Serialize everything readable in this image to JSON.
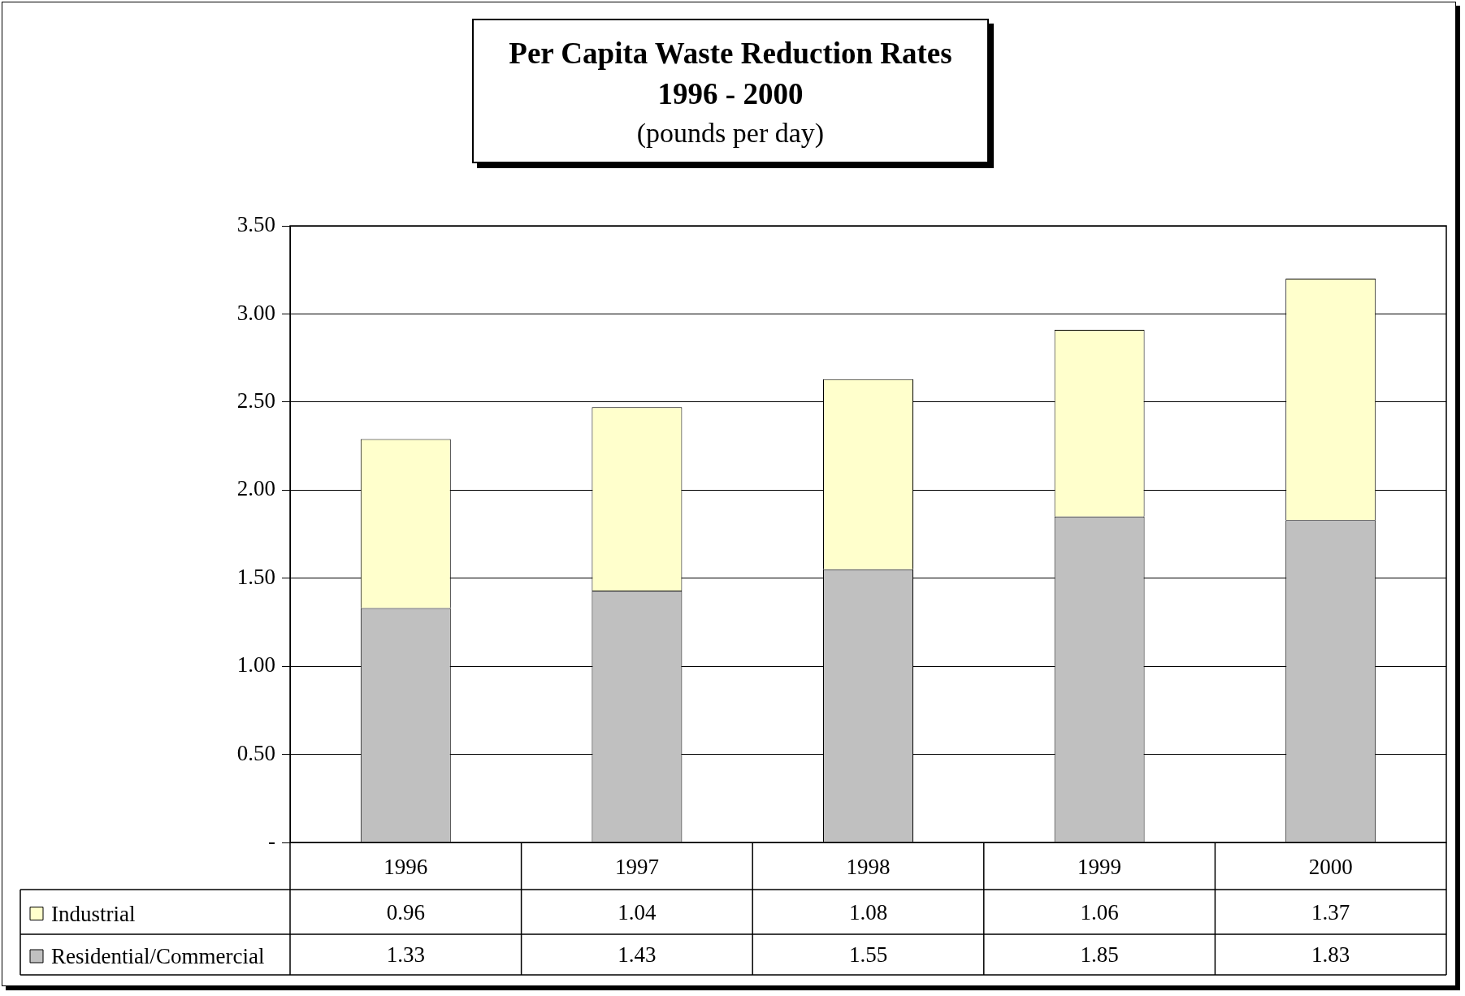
{
  "chart_data": {
    "type": "bar",
    "title": "Per Capita Waste Reduction Rates\n1996 - 2000",
    "subtitle": "(pounds per day)",
    "categories": [
      "1996",
      "1997",
      "1998",
      "1999",
      "2000"
    ],
    "series": [
      {
        "name": "Residential/Commercial",
        "color": "#c0c0c0",
        "values": [
          1.33,
          1.43,
          1.55,
          1.85,
          1.83
        ]
      },
      {
        "name": "Industrial",
        "color": "#ffffcc",
        "values": [
          0.96,
          1.04,
          1.08,
          1.06,
          1.37
        ]
      }
    ],
    "stacked": true,
    "data_labels": true,
    "legend": "bottom left",
    "grid": "y",
    "ylim": [
      0,
      3.5
    ],
    "yticks": [
      {
        "value": 0,
        "label": "-"
      },
      {
        "value": 0.5,
        "label": "0.50"
      },
      {
        "value": 1,
        "label": "1.00"
      },
      {
        "value": 1.5,
        "label": "1.50"
      },
      {
        "value": 2,
        "label": "2.00"
      },
      {
        "value": 2.5,
        "label": "2.50"
      },
      {
        "value": 3,
        "label": "3.00"
      },
      {
        "value": 3.5,
        "label": "3.50"
      }
    ]
  }
}
